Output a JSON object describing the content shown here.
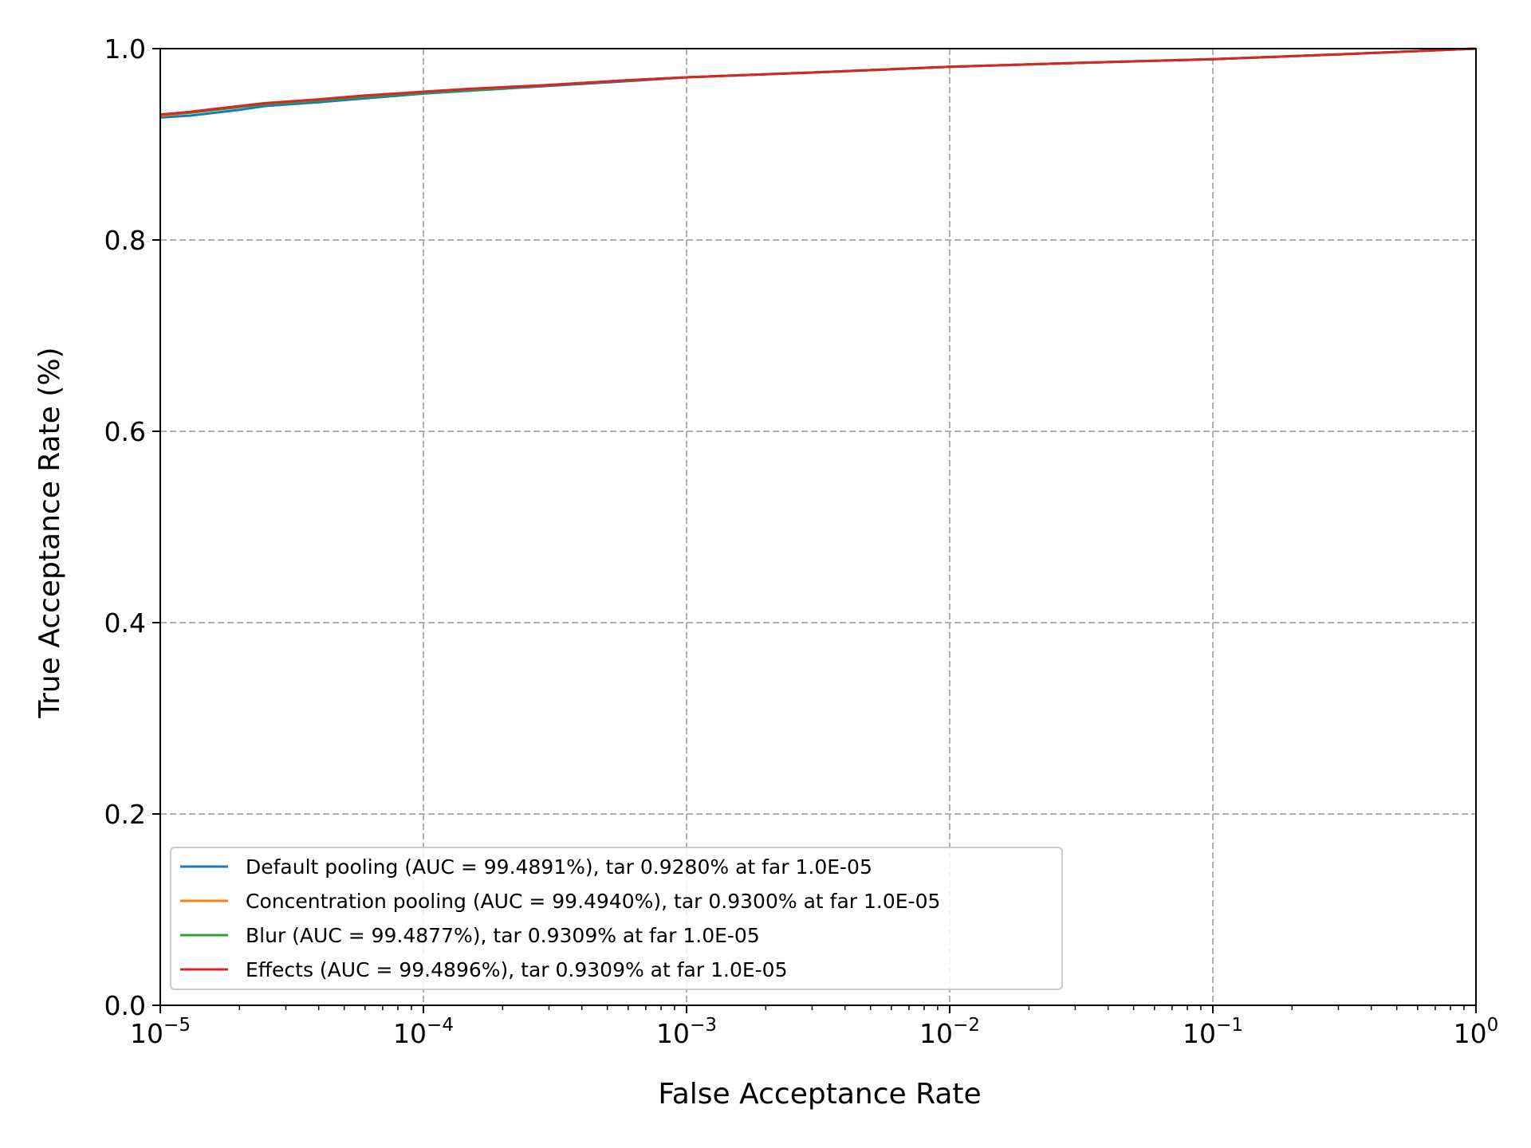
{
  "chart_data": {
    "type": "line",
    "title": "",
    "xlabel": "False Acceptance Rate",
    "ylabel": "True Acceptance Rate (%)",
    "xscale": "log",
    "xlim": [
      1e-05,
      1
    ],
    "ylim": [
      0.0,
      1.0
    ],
    "grid": true,
    "legend_position": "lower-left",
    "x_ticks": [
      {
        "value": 1e-05,
        "base": "10",
        "exp": "−5"
      },
      {
        "value": 0.0001,
        "base": "10",
        "exp": "−4"
      },
      {
        "value": 0.001,
        "base": "10",
        "exp": "−3"
      },
      {
        "value": 0.01,
        "base": "10",
        "exp": "−2"
      },
      {
        "value": 0.1,
        "base": "10",
        "exp": "−1"
      },
      {
        "value": 1,
        "base": "10",
        "exp": "0"
      }
    ],
    "y_ticks": [
      {
        "value": 0.0,
        "label": "0.0"
      },
      {
        "value": 0.2,
        "label": "0.2"
      },
      {
        "value": 0.4,
        "label": "0.4"
      },
      {
        "value": 0.6,
        "label": "0.6"
      },
      {
        "value": 0.8,
        "label": "0.8"
      },
      {
        "value": 1.0,
        "label": "1.0"
      }
    ],
    "series": [
      {
        "name": "Default pooling (AUC = 99.4891%), tar 0.9280% at far 1.0E-05",
        "color": "#1f77b4",
        "x": [
          1e-05,
          1.3e-05,
          2e-05,
          2.5e-05,
          4e-05,
          6e-05,
          0.0001,
          0.00015,
          0.0003,
          0.0006,
          0.001,
          0.003,
          0.01,
          0.03,
          0.1,
          0.3,
          1
        ],
        "y": [
          0.928,
          0.93,
          0.936,
          0.94,
          0.944,
          0.948,
          0.953,
          0.956,
          0.961,
          0.966,
          0.97,
          0.975,
          0.981,
          0.985,
          0.989,
          0.994,
          1.0
        ]
      },
      {
        "name": "Concentration pooling (AUC = 99.4940%), tar 0.9300% at far 1.0E-05",
        "color": "#ff7f0e",
        "x": [
          1e-05,
          1.3e-05,
          2e-05,
          2.5e-05,
          4e-05,
          6e-05,
          0.0001,
          0.00015,
          0.0003,
          0.0006,
          0.001,
          0.003,
          0.01,
          0.03,
          0.1,
          0.3,
          1
        ],
        "y": [
          0.93,
          0.933,
          0.939,
          0.942,
          0.946,
          0.95,
          0.954,
          0.957,
          0.962,
          0.967,
          0.97,
          0.975,
          0.981,
          0.985,
          0.989,
          0.994,
          1.0
        ]
      },
      {
        "name": "Blur (AUC = 99.4877%), tar 0.9309% at far 1.0E-05",
        "color": "#2ca02c",
        "x": [
          1e-05,
          1.3e-05,
          2e-05,
          2.5e-05,
          4e-05,
          6e-05,
          0.0001,
          0.00015,
          0.0003,
          0.0006,
          0.001,
          0.003,
          0.01,
          0.03,
          0.1,
          0.3,
          1
        ],
        "y": [
          0.931,
          0.933,
          0.939,
          0.942,
          0.946,
          0.95,
          0.954,
          0.957,
          0.962,
          0.967,
          0.97,
          0.975,
          0.981,
          0.985,
          0.989,
          0.994,
          1.0
        ]
      },
      {
        "name": "Effects (AUC = 99.4896%), tar 0.9309% at far 1.0E-05",
        "color": "#d62728",
        "x": [
          1e-05,
          1.3e-05,
          2e-05,
          2.5e-05,
          4e-05,
          6e-05,
          0.0001,
          0.00015,
          0.0003,
          0.0006,
          0.001,
          0.003,
          0.01,
          0.03,
          0.1,
          0.3,
          1
        ],
        "y": [
          0.931,
          0.934,
          0.94,
          0.943,
          0.947,
          0.951,
          0.955,
          0.958,
          0.962,
          0.967,
          0.97,
          0.975,
          0.981,
          0.985,
          0.989,
          0.994,
          1.0
        ]
      }
    ]
  }
}
